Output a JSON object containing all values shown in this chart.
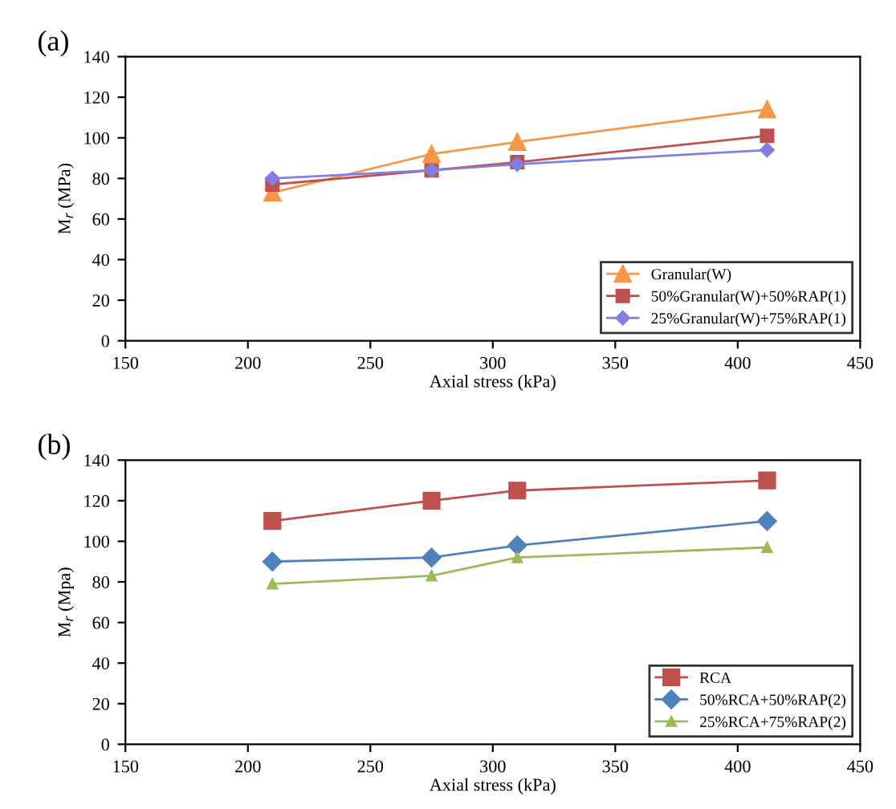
{
  "chart_data": [
    {
      "type": "line",
      "title": "(a)",
      "xlabel": "Axial stress (kPa)",
      "ylabel": "M$_{r}$ (MPa)",
      "xlim": [
        150,
        450
      ],
      "xticks": [
        150,
        200,
        250,
        300,
        350,
        400,
        450
      ],
      "ylim": [
        0,
        140
      ],
      "yticks": [
        0,
        20,
        40,
        60,
        80,
        100,
        120,
        140
      ],
      "grid": false,
      "legend": "bottom right",
      "x": [
        210,
        275,
        310,
        412
      ],
      "series": [
        {
          "name": "Granular(W)",
          "color": "#f79646",
          "marker": "triangle",
          "values": [
            73,
            92,
            98,
            114
          ]
        },
        {
          "name": "50%Granular(W)+50%RAP(1)",
          "color": "#c0504d",
          "marker": "square",
          "values": [
            77,
            84,
            88,
            101
          ]
        },
        {
          "name": "25%Granular(W)+75%RAP(1)",
          "color": "#7f7fdf",
          "marker": "diamond",
          "values": [
            80,
            84,
            87,
            94
          ]
        }
      ]
    },
    {
      "type": "line",
      "title": "(b)",
      "xlabel": "Axial stress (kPa)",
      "ylabel": "M$_{r}$ (Mpa)",
      "xlim": [
        150,
        450
      ],
      "xticks": [
        150,
        200,
        250,
        300,
        350,
        400,
        450
      ],
      "ylim": [
        0,
        140
      ],
      "yticks": [
        0,
        20,
        40,
        60,
        80,
        100,
        120,
        140
      ],
      "grid": false,
      "legend": "bottom right",
      "x": [
        210,
        275,
        310,
        412
      ],
      "series": [
        {
          "name": "RCA",
          "color": "#c0504d",
          "marker": "square",
          "values": [
            110,
            120,
            125,
            130
          ]
        },
        {
          "name": "50%RCA+50%RAP(2)",
          "color": "#4f81bd",
          "marker": "diamond",
          "values": [
            90,
            92,
            98,
            110
          ]
        },
        {
          "name": "25%RCA+75%RAP(2)",
          "color": "#9bbb59",
          "marker": "triangle",
          "values": [
            79,
            83,
            92,
            97
          ]
        }
      ]
    }
  ]
}
